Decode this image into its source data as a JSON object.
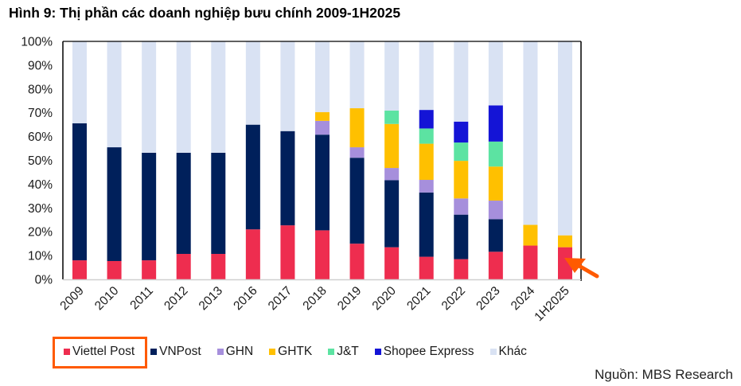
{
  "colors": {
    "highlight": "#ff5a00",
    "axis": "#000000",
    "baseline": "#d0d0d0"
  },
  "source": "Nguồn: MBS Research",
  "chart_data": {
    "type": "bar",
    "stacked": true,
    "title": "Hình 9: Thị phần các doanh nghiệp bưu chính 2009-1H2025",
    "xlabel": "",
    "ylabel": "",
    "ylim": [
      0,
      100
    ],
    "y_ticks": [
      "0%",
      "10%",
      "20%",
      "30%",
      "40%",
      "50%",
      "60%",
      "70%",
      "80%",
      "90%",
      "100%"
    ],
    "grid": false,
    "legend_position": "bottom",
    "categories": [
      "2009",
      "2010",
      "2011",
      "2012",
      "2013",
      "2016",
      "2017",
      "2018",
      "2019",
      "2020",
      "2021",
      "2022",
      "2023",
      "2024",
      "1H2025"
    ],
    "series": [
      {
        "name": "Viettel Post",
        "color": "#ee2d4f",
        "highlighted": true,
        "values": [
          8.0,
          7.7,
          8.0,
          10.7,
          10.7,
          21.0,
          22.7,
          20.6,
          15.0,
          13.5,
          9.5,
          8.5,
          11.6,
          14.2,
          13.5
        ]
      },
      {
        "name": "VNPost",
        "color": "#00205b",
        "values": [
          57.6,
          47.8,
          45.2,
          42.5,
          42.5,
          44.0,
          39.6,
          40.2,
          36.1,
          28.2,
          27.0,
          18.7,
          13.7,
          0,
          0
        ]
      },
      {
        "name": "GHN",
        "color": "#a68fdc",
        "values": [
          0,
          0,
          0,
          0,
          0,
          0,
          0,
          5.8,
          4.4,
          5.1,
          5.3,
          6.8,
          7.8,
          0,
          0
        ]
      },
      {
        "name": "GHTK",
        "color": "#ffc000",
        "values": [
          0,
          0,
          0,
          0,
          0,
          0,
          0,
          3.7,
          16.4,
          18.5,
          15.2,
          15.8,
          14.3,
          8.7,
          5.0
        ]
      },
      {
        "name": "J&T",
        "color": "#5ce3a2",
        "values": [
          0,
          0,
          0,
          0,
          0,
          0,
          0,
          0,
          0,
          5.6,
          6.4,
          7.7,
          10.5,
          0,
          0
        ]
      },
      {
        "name": "Shopee Express",
        "color": "#1414d6",
        "values": [
          0,
          0,
          0,
          0,
          0,
          0,
          0,
          0,
          0,
          0,
          7.8,
          8.8,
          15.2,
          0,
          0
        ]
      },
      {
        "name": "Khác",
        "color": "#d9e2f3",
        "values": [
          34.4,
          44.5,
          46.8,
          46.8,
          46.8,
          35.0,
          37.7,
          29.7,
          28.1,
          29.1,
          28.8,
          33.7,
          26.9,
          77.1,
          81.5
        ]
      }
    ],
    "annotations": [
      {
        "type": "arrow",
        "points_to": "1H2025 Viettel Post",
        "color": "#ff5a00"
      },
      {
        "type": "box",
        "around": "legend Viettel Post",
        "color": "#ff5a00"
      }
    ]
  }
}
